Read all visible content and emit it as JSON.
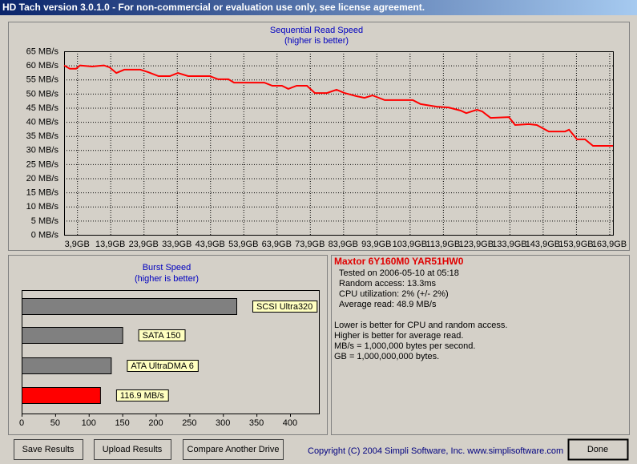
{
  "window": {
    "title": "HD Tach version 3.0.1.0  - For non-commercial or evaluation use only, see license agreement."
  },
  "chart_data": [
    {
      "type": "line",
      "title": "Sequential Read Speed",
      "subtitle": "(higher is better)",
      "color": "#ff0000",
      "grid": true,
      "x": [
        0,
        1.7,
        3.6,
        4.8,
        8.4,
        12.0,
        13.7,
        15.7,
        18.1,
        22.9,
        25.3,
        28.4,
        31.8,
        34.2,
        37.3,
        43.8,
        46.3,
        49.4,
        51.1,
        60.2,
        62.6,
        65.5,
        67.4,
        69.9,
        73.0,
        75.4,
        79.0,
        81.9,
        84.3,
        87.9,
        90.3,
        92.7,
        96.4,
        104.8,
        107.2,
        112.0,
        115.6,
        119.2,
        120.9,
        124.1,
        125.7,
        128.2,
        133.7,
        135.6,
        139.7,
        142.1,
        145.7,
        150.6,
        151.8,
        154.2,
        156.6,
        159.0,
        165.0
      ],
      "values": [
        60,
        58.8,
        58.8,
        60,
        59.6,
        60,
        59.3,
        57.3,
        58.5,
        58.5,
        57.6,
        56.2,
        56.2,
        57.3,
        56.2,
        56.2,
        55.1,
        55.1,
        53.9,
        53.9,
        52.8,
        52.8,
        51.7,
        52.8,
        52.8,
        50.2,
        50.2,
        51.4,
        50.2,
        49.1,
        48.5,
        49.4,
        47.7,
        47.7,
        46.3,
        45.4,
        45.1,
        44.0,
        43.1,
        44.3,
        43.7,
        41.4,
        41.7,
        38.9,
        39.2,
        38.9,
        36.6,
        36.6,
        37.2,
        33.8,
        33.8,
        31.5,
        31.5
      ],
      "xlim": [
        0,
        165
      ],
      "xticks": [
        {
          "value": 3.9,
          "label": "3,9GB"
        },
        {
          "value": 13.9,
          "label": "13,9GB"
        },
        {
          "value": 23.9,
          "label": "23,9GB"
        },
        {
          "value": 33.9,
          "label": "33,9GB"
        },
        {
          "value": 43.9,
          "label": "43,9GB"
        },
        {
          "value": 53.9,
          "label": "53,9GB"
        },
        {
          "value": 63.9,
          "label": "63,9GB"
        },
        {
          "value": 73.9,
          "label": "73,9GB"
        },
        {
          "value": 83.9,
          "label": "83,9GB"
        },
        {
          "value": 93.9,
          "label": "93,9GB"
        },
        {
          "value": 103.9,
          "label": "103,9GB"
        },
        {
          "value": 113.9,
          "label": "113,9GB"
        },
        {
          "value": 123.9,
          "label": "123,9GB"
        },
        {
          "value": 133.9,
          "label": "133,9GB"
        },
        {
          "value": 143.9,
          "label": "143,9GB"
        },
        {
          "value": 153.9,
          "label": "153,9GB"
        },
        {
          "value": 163.9,
          "label": "163,9GB"
        }
      ],
      "ylim": [
        0,
        65
      ],
      "yticks": [
        {
          "value": 0,
          "label": "0 MB/s"
        },
        {
          "value": 5,
          "label": "5 MB/s"
        },
        {
          "value": 10,
          "label": "10 MB/s"
        },
        {
          "value": 15,
          "label": "15 MB/s"
        },
        {
          "value": 20,
          "label": "20 MB/s"
        },
        {
          "value": 25,
          "label": "25 MB/s"
        },
        {
          "value": 30,
          "label": "30 MB/s"
        },
        {
          "value": 35,
          "label": "35 MB/s"
        },
        {
          "value": 40,
          "label": "40 MB/s"
        },
        {
          "value": 45,
          "label": "45 MB/s"
        },
        {
          "value": 50,
          "label": "50 MB/s"
        },
        {
          "value": 55,
          "label": "55 MB/s"
        },
        {
          "value": 60,
          "label": "60 MB/s"
        },
        {
          "value": 65,
          "label": "65 MB/s"
        }
      ]
    },
    {
      "type": "bar",
      "horizontal": true,
      "title": "Burst Speed",
      "subtitle": "(higher is better)",
      "categories": [
        "SCSI Ultra320",
        "SATA 150",
        "ATA UltraDMA 6",
        null
      ],
      "values": [
        320,
        150,
        133,
        116.9
      ],
      "value_labels": [
        null,
        null,
        null,
        "116.9 MB/s"
      ],
      "colors": [
        "#808080",
        "#808080",
        "#808080",
        "#ff0000"
      ],
      "xlim": [
        0,
        443
      ],
      "xticks": [
        0,
        50,
        100,
        150,
        200,
        250,
        300,
        350,
        400
      ]
    }
  ],
  "info": {
    "drive": "Maxtor 6Y160M0 YAR51HW0",
    "lines": [
      "Tested on 2006-05-10 at 05:18",
      "Random access: 13.3ms",
      "CPU utilization: 2% (+/- 2%)",
      "Average read: 48.9 MB/s"
    ],
    "notes": [
      "Lower is better for CPU and random access.",
      "Higher is better for average read.",
      "MB/s = 1,000,000 bytes per second.",
      "GB = 1,000,000,000 bytes."
    ]
  },
  "buttons": [
    "Save Results",
    "Upload Results",
    "Compare Another Drive",
    "Done"
  ],
  "copyright": "Copyright (C) 2004 Simpli Software, Inc. www.simplisoftware.com"
}
